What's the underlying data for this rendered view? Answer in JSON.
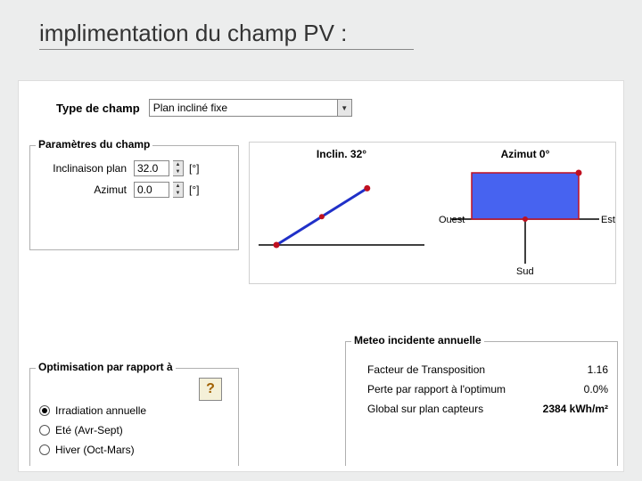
{
  "slide": {
    "title": "implimentation du champ PV :"
  },
  "type": {
    "label": "Type de champ",
    "value": "Plan incliné fixe"
  },
  "params": {
    "group_title": "Paramètres du champ",
    "inclination": {
      "label": "Inclinaison plan",
      "value": "32.0",
      "unit": "[°]"
    },
    "azimut": {
      "label": "Azimut",
      "value": "0.0",
      "unit": "[°]"
    }
  },
  "diagrams": {
    "inclination": {
      "title": "Inclin. 32°",
      "angle_deg": 32,
      "line_color": "#2030c8",
      "marker_color": "#c01020",
      "ground_color": "#000000",
      "bg": "#ffffff"
    },
    "azimut": {
      "title": "Azimut 0°",
      "west_label": "Ouest",
      "east_label": "Est",
      "south_label": "Sud",
      "rect_fill": "#4763f0",
      "rect_stroke": "#c01020",
      "marker_color": "#c01020",
      "axis_color": "#000000",
      "bg": "#ffffff"
    }
  },
  "optim": {
    "group_title": "Optimisation par rapport à",
    "help_label": "?",
    "options": [
      {
        "label": "Irradiation annuelle",
        "checked": true
      },
      {
        "label": "Eté (Avr-Sept)",
        "checked": false
      },
      {
        "label": "Hiver (Oct-Mars)",
        "checked": false
      }
    ]
  },
  "meteo": {
    "group_title": "Meteo incidente annuelle",
    "rows": [
      {
        "label": "Facteur de Transposition",
        "value": "1.16"
      },
      {
        "label": "Perte par rapport à l'optimum",
        "value": "0.0%"
      },
      {
        "label": "Global sur plan capteurs",
        "value": "2384 kWh/m²"
      }
    ]
  }
}
